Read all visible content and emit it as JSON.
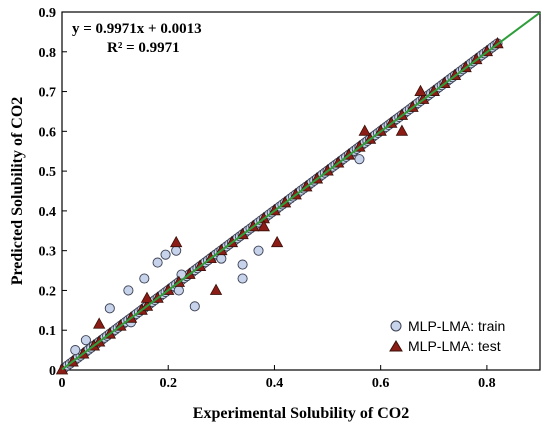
{
  "chart_data": {
    "type": "scatter",
    "title": "",
    "xlabel": "Experimental  Solubility  of CO2",
    "ylabel": "Predicted  Solubility  of CO2",
    "xlim": [
      0,
      0.9
    ],
    "ylim": [
      0,
      0.9
    ],
    "xticks": [
      "0",
      "0.2",
      "0.4",
      "0.6",
      "0.8"
    ],
    "xtick_values": [
      0,
      0.2,
      0.4,
      0.6,
      0.8
    ],
    "yticks": [
      "0",
      "0.1",
      "0.2",
      "0.3",
      "0.4",
      "0.5",
      "0.6",
      "0.7",
      "0.8",
      "0.9"
    ],
    "ytick_values": [
      0,
      0.1,
      0.2,
      0.3,
      0.4,
      0.5,
      0.6,
      0.7,
      0.8,
      0.9
    ],
    "grid": false,
    "legend_position": "bottom-right",
    "annotations": {
      "equation": "y = 0.9971x + 0.0013",
      "r_squared": "R² = 0.9971"
    },
    "fit_line": {
      "slope": 0.9971,
      "intercept": 0.0013,
      "color": "#2e9e3a"
    },
    "series": [
      {
        "name": "MLP-LMA: train",
        "marker": "circle",
        "fill": "#c7d3ea",
        "stroke": "#3a3f52",
        "x": [
          0.005,
          0.01,
          0.015,
          0.02,
          0.025,
          0.03,
          0.035,
          0.04,
          0.045,
          0.05,
          0.055,
          0.06,
          0.065,
          0.07,
          0.075,
          0.08,
          0.085,
          0.09,
          0.095,
          0.1,
          0.105,
          0.11,
          0.115,
          0.12,
          0.125,
          0.13,
          0.135,
          0.14,
          0.145,
          0.15,
          0.155,
          0.16,
          0.165,
          0.17,
          0.175,
          0.18,
          0.185,
          0.19,
          0.195,
          0.2,
          0.205,
          0.21,
          0.215,
          0.22,
          0.225,
          0.23,
          0.235,
          0.24,
          0.245,
          0.25,
          0.255,
          0.26,
          0.265,
          0.27,
          0.275,
          0.28,
          0.285,
          0.29,
          0.295,
          0.3,
          0.305,
          0.31,
          0.315,
          0.32,
          0.325,
          0.33,
          0.335,
          0.34,
          0.345,
          0.35,
          0.355,
          0.36,
          0.365,
          0.37,
          0.375,
          0.38,
          0.385,
          0.39,
          0.395,
          0.4,
          0.405,
          0.41,
          0.415,
          0.42,
          0.425,
          0.43,
          0.435,
          0.44,
          0.445,
          0.45,
          0.455,
          0.46,
          0.465,
          0.47,
          0.475,
          0.48,
          0.485,
          0.49,
          0.495,
          0.5,
          0.505,
          0.51,
          0.515,
          0.52,
          0.525,
          0.53,
          0.535,
          0.54,
          0.545,
          0.55,
          0.555,
          0.56,
          0.565,
          0.57,
          0.575,
          0.58,
          0.585,
          0.59,
          0.595,
          0.6,
          0.605,
          0.61,
          0.615,
          0.62,
          0.625,
          0.63,
          0.635,
          0.64,
          0.645,
          0.65,
          0.655,
          0.66,
          0.665,
          0.67,
          0.675,
          0.68,
          0.685,
          0.69,
          0.695,
          0.7,
          0.705,
          0.71,
          0.715,
          0.72,
          0.725,
          0.73,
          0.735,
          0.74,
          0.745,
          0.75,
          0.755,
          0.76,
          0.765,
          0.77,
          0.775,
          0.78,
          0.785,
          0.79,
          0.795,
          0.8,
          0.805,
          0.81,
          0.815,
          0.82,
          0.025,
          0.045,
          0.09,
          0.125,
          0.155,
          0.18,
          0.195,
          0.215,
          0.225,
          0.34,
          0.34,
          0.37,
          0.13,
          0.25,
          0.56,
          0.3,
          0.22
        ],
        "y": [
          0.006,
          0.011,
          0.016,
          0.021,
          0.026,
          0.031,
          0.036,
          0.041,
          0.046,
          0.051,
          0.056,
          0.061,
          0.066,
          0.071,
          0.076,
          0.081,
          0.086,
          0.091,
          0.096,
          0.101,
          0.106,
          0.111,
          0.116,
          0.121,
          0.126,
          0.131,
          0.136,
          0.141,
          0.146,
          0.151,
          0.156,
          0.161,
          0.166,
          0.171,
          0.176,
          0.181,
          0.186,
          0.191,
          0.196,
          0.201,
          0.206,
          0.211,
          0.216,
          0.221,
          0.226,
          0.231,
          0.236,
          0.241,
          0.246,
          0.251,
          0.256,
          0.261,
          0.266,
          0.271,
          0.276,
          0.281,
          0.286,
          0.291,
          0.296,
          0.301,
          0.306,
          0.311,
          0.316,
          0.321,
          0.326,
          0.331,
          0.336,
          0.341,
          0.346,
          0.351,
          0.356,
          0.361,
          0.366,
          0.371,
          0.376,
          0.381,
          0.386,
          0.391,
          0.396,
          0.401,
          0.406,
          0.411,
          0.416,
          0.421,
          0.426,
          0.431,
          0.436,
          0.441,
          0.446,
          0.451,
          0.456,
          0.461,
          0.466,
          0.471,
          0.476,
          0.481,
          0.486,
          0.491,
          0.496,
          0.501,
          0.506,
          0.511,
          0.516,
          0.521,
          0.526,
          0.531,
          0.536,
          0.541,
          0.546,
          0.551,
          0.556,
          0.561,
          0.566,
          0.571,
          0.576,
          0.581,
          0.586,
          0.591,
          0.596,
          0.601,
          0.606,
          0.611,
          0.616,
          0.621,
          0.626,
          0.631,
          0.636,
          0.641,
          0.646,
          0.651,
          0.656,
          0.661,
          0.666,
          0.671,
          0.676,
          0.681,
          0.686,
          0.691,
          0.696,
          0.701,
          0.706,
          0.711,
          0.716,
          0.721,
          0.726,
          0.731,
          0.736,
          0.741,
          0.746,
          0.751,
          0.756,
          0.761,
          0.766,
          0.771,
          0.776,
          0.781,
          0.786,
          0.791,
          0.796,
          0.801,
          0.806,
          0.811,
          0.816,
          0.821,
          0.05,
          0.075,
          0.155,
          0.2,
          0.23,
          0.27,
          0.29,
          0.3,
          0.24,
          0.23,
          0.265,
          0.3,
          0.12,
          0.16,
          0.53,
          0.28,
          0.2
        ]
      },
      {
        "name": "MLP-LMA: test",
        "marker": "triangle",
        "fill": "#8c1c16",
        "stroke": "#3a1008",
        "x": [
          0.0,
          0.02,
          0.04,
          0.06,
          0.07,
          0.09,
          0.11,
          0.13,
          0.15,
          0.16,
          0.18,
          0.2,
          0.22,
          0.24,
          0.26,
          0.28,
          0.3,
          0.32,
          0.34,
          0.36,
          0.38,
          0.4,
          0.42,
          0.44,
          0.46,
          0.48,
          0.5,
          0.52,
          0.54,
          0.56,
          0.58,
          0.6,
          0.62,
          0.64,
          0.66,
          0.68,
          0.7,
          0.72,
          0.74,
          0.76,
          0.78,
          0.8,
          0.82,
          0.07,
          0.215,
          0.29,
          0.405,
          0.57,
          0.64,
          0.675,
          0.38,
          0.16
        ],
        "y": [
          0.0,
          0.02,
          0.04,
          0.06,
          0.07,
          0.09,
          0.11,
          0.13,
          0.15,
          0.16,
          0.18,
          0.2,
          0.22,
          0.24,
          0.26,
          0.28,
          0.3,
          0.32,
          0.34,
          0.36,
          0.38,
          0.4,
          0.42,
          0.44,
          0.46,
          0.48,
          0.5,
          0.52,
          0.54,
          0.56,
          0.58,
          0.6,
          0.62,
          0.64,
          0.66,
          0.68,
          0.7,
          0.72,
          0.74,
          0.76,
          0.78,
          0.8,
          0.82,
          0.115,
          0.32,
          0.2,
          0.32,
          0.6,
          0.6,
          0.7,
          0.36,
          0.18
        ]
      }
    ]
  }
}
